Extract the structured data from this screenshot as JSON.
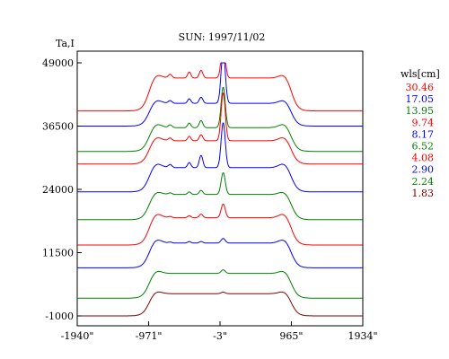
{
  "chart_data": {
    "type": "line",
    "title": "SUN: 1997/11/02",
    "ylabel": "Ta,I",
    "xlabel": "",
    "x_ticks": [
      "-1940\"",
      "-971\"",
      "-3\"",
      "965\"",
      "1934\""
    ],
    "x_tick_values": [
      -1940,
      -971,
      -3,
      965,
      1934
    ],
    "y_ticks": [
      "49000",
      "36500",
      "24000",
      "11500",
      "-1000"
    ],
    "y_tick_values": [
      49000,
      36500,
      24000,
      11500,
      -1000
    ],
    "xlim": [
      -1940,
      1934
    ],
    "ylim": [
      -1000,
      49000
    ],
    "legend_title": "wls[cm]",
    "legend_position": "right",
    "grid": false,
    "series": [
      {
        "name": "30.46",
        "color": "#ff0000",
        "offset": 39500,
        "disk": 6500,
        "limb": 900,
        "active": 6600,
        "src1": 1200,
        "src2": 1500
      },
      {
        "name": "17.05",
        "color": "#0000ff",
        "offset": 36500,
        "disk": 4500,
        "limb": 800,
        "active": 10500,
        "src1": 900,
        "src2": 1200
      },
      {
        "name": "13.95",
        "color": "#008000",
        "offset": 31500,
        "disk": 4700,
        "limb": 900,
        "active": 8000,
        "src1": 900,
        "src2": 1400
      },
      {
        "name": "9.74",
        "color": "#ff0000",
        "offset": 29000,
        "disk": 4600,
        "limb": 900,
        "active": 9500,
        "src1": 900,
        "src2": 1200
      },
      {
        "name": "8.17",
        "color": "#0000ff",
        "offset": 23500,
        "disk": 4800,
        "limb": 1000,
        "active": 8900,
        "src1": 1000,
        "src2": 2400
      },
      {
        "name": "6.52",
        "color": "#008000",
        "offset": 18000,
        "disk": 5000,
        "limb": 700,
        "active": 4300,
        "src1": 500,
        "src2": 800
      },
      {
        "name": "4.08",
        "color": "#ff0000",
        "offset": 13000,
        "disk": 5400,
        "limb": 1000,
        "active": 2700,
        "src1": 400,
        "src2": 700
      },
      {
        "name": "2.90",
        "color": "#0000ff",
        "offset": 8500,
        "disk": 4900,
        "limb": 900,
        "active": 900,
        "src1": 300,
        "src2": 300
      },
      {
        "name": "2.24",
        "color": "#008000",
        "offset": 2500,
        "disk": 4900,
        "limb": 700,
        "active": 700,
        "src1": 0,
        "src2": 0
      },
      {
        "name": "1.83",
        "color": "#800000",
        "offset": -1000,
        "disk": 4400,
        "limb": 600,
        "active": 300,
        "src1": 0,
        "src2": 0
      }
    ]
  }
}
